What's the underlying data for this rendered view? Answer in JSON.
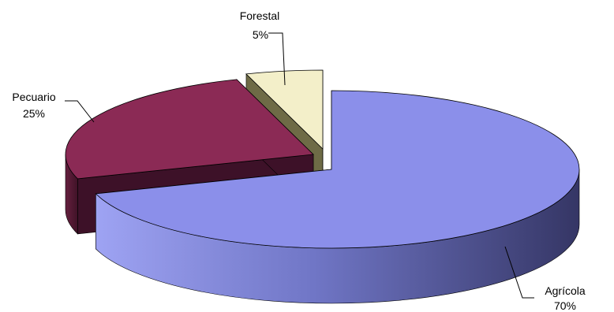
{
  "chart_data": {
    "type": "pie",
    "title": "",
    "style": "3d-exploded",
    "categories": [
      "Agrícola",
      "Pecuario",
      "Forestal"
    ],
    "values": [
      70,
      25,
      5
    ],
    "labels": [
      "70%",
      "25%",
      "5%"
    ],
    "colors": {
      "Agrícola": "#8b8fea",
      "Pecuario": "#8b2a55",
      "Forestal": "#f3efc9"
    },
    "legend": "none"
  }
}
